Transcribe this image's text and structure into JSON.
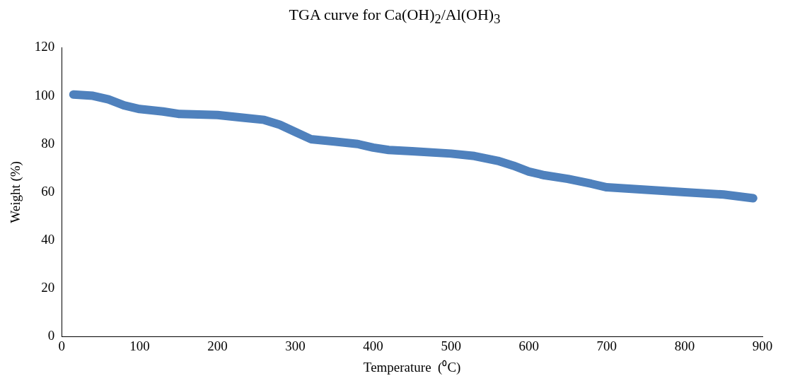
{
  "chart_data": {
    "type": "line",
    "title": "TGA curve for Ca(OH)$_{2}$/Al(OH)$_{3}$",
    "xlabel": "Temperature  (⁰C)",
    "ylabel": "Weight (%)",
    "x": [
      15,
      40,
      60,
      80,
      100,
      130,
      150,
      200,
      230,
      260,
      280,
      300,
      320,
      350,
      380,
      400,
      420,
      450,
      500,
      530,
      560,
      580,
      600,
      620,
      650,
      680,
      700,
      750,
      800,
      850,
      888
    ],
    "series": [
      {
        "color": "#4f81bd",
        "values": [
          100.5,
          100,
          98.5,
          96,
          94.5,
          93.5,
          92.5,
          92,
          91,
          90,
          88,
          85,
          82,
          81,
          80,
          78.5,
          77.5,
          77,
          76,
          75,
          73,
          71,
          68.5,
          67,
          65.5,
          63.5,
          62,
          61,
          60,
          59,
          57.5
        ]
      }
    ],
    "xlim": [
      0,
      900
    ],
    "xticks": [
      0,
      100,
      200,
      300,
      400,
      500,
      600,
      700,
      800,
      900
    ],
    "ylim": [
      0,
      120
    ],
    "yticks": [
      0,
      20,
      40,
      60,
      80,
      100,
      120
    ],
    "grid": false,
    "legend": false,
    "marker": "none",
    "line_style": "solid"
  }
}
